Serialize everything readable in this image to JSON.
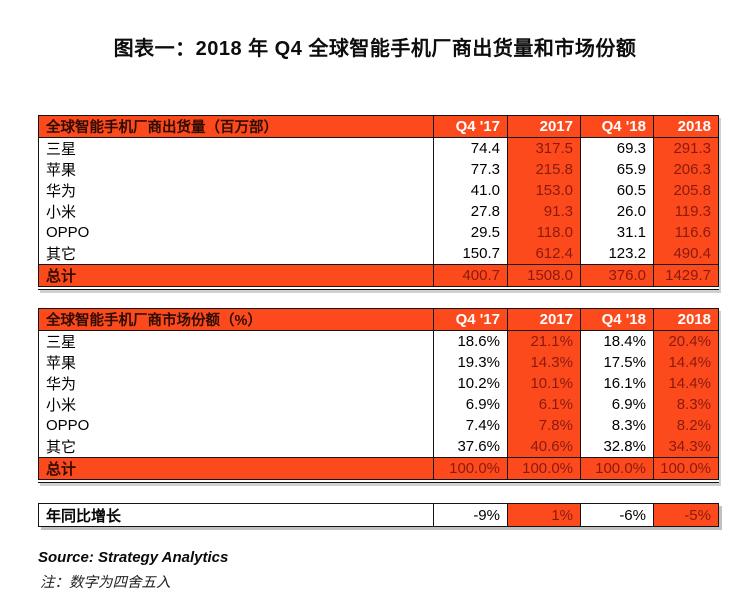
{
  "page_title": "图表一：2018 年 Q4 全球智能手机厂商出货量和市场份额",
  "footer": {
    "source": "Source: Strategy Analytics",
    "note": "注：数字为四舍五入"
  },
  "colors": {
    "orange": "#FC4A1D",
    "dark_red": "#8B1A0E",
    "header_label": "#300D04",
    "white_text": "#FFFFFF"
  },
  "chart_data": [
    {
      "type": "table",
      "title": "全球智能手机厂商出货量（百万部）",
      "columns": [
        "Q4 '17",
        "2017",
        "Q4 '18",
        "2018"
      ],
      "highlighted_columns": [
        "2017",
        "2018"
      ],
      "rows": [
        {
          "label": "三星",
          "values": [
            "74.4",
            "317.5",
            "69.3",
            "291.3"
          ]
        },
        {
          "label": "苹果",
          "values": [
            "77.3",
            "215.8",
            "65.9",
            "206.3"
          ]
        },
        {
          "label": "华为",
          "values": [
            "41.0",
            "153.0",
            "60.5",
            "205.8"
          ]
        },
        {
          "label": "小米",
          "values": [
            "27.8",
            "91.3",
            "26.0",
            "119.3"
          ]
        },
        {
          "label": "OPPO",
          "values": [
            "29.5",
            "118.0",
            "31.1",
            "116.6"
          ]
        },
        {
          "label": "其它",
          "values": [
            "150.7",
            "612.4",
            "123.2",
            "490.4"
          ]
        }
      ],
      "total": {
        "label": "总计",
        "values": [
          "400.7",
          "1508.0",
          "376.0",
          "1429.7"
        ]
      }
    },
    {
      "type": "table",
      "title": "全球智能手机厂商市场份额（%）",
      "columns": [
        "Q4 '17",
        "2017",
        "Q4 '18",
        "2018"
      ],
      "highlighted_columns": [
        "2017",
        "2018"
      ],
      "rows": [
        {
          "label": "三星",
          "values": [
            "18.6%",
            "21.1%",
            "18.4%",
            "20.4%"
          ]
        },
        {
          "label": "苹果",
          "values": [
            "19.3%",
            "14.3%",
            "17.5%",
            "14.4%"
          ]
        },
        {
          "label": "华为",
          "values": [
            "10.2%",
            "10.1%",
            "16.1%",
            "14.4%"
          ]
        },
        {
          "label": "小米",
          "values": [
            "6.9%",
            "6.1%",
            "6.9%",
            "8.3%"
          ]
        },
        {
          "label": "OPPO",
          "values": [
            "7.4%",
            "7.8%",
            "8.3%",
            "8.2%"
          ]
        },
        {
          "label": "其它",
          "values": [
            "37.6%",
            "40.6%",
            "32.8%",
            "34.3%"
          ]
        }
      ],
      "total": {
        "label": "总计",
        "values": [
          "100.0%",
          "100.0%",
          "100.0%",
          "100.0%"
        ]
      }
    },
    {
      "type": "table",
      "title": "年同比增长",
      "columns": [
        "Q4 '17",
        "2017",
        "Q4 '18",
        "2018"
      ],
      "rows": [
        {
          "label": "年同比增长",
          "values": [
            "-9%",
            "1%",
            "-6%",
            "-5%"
          ]
        }
      ]
    }
  ]
}
